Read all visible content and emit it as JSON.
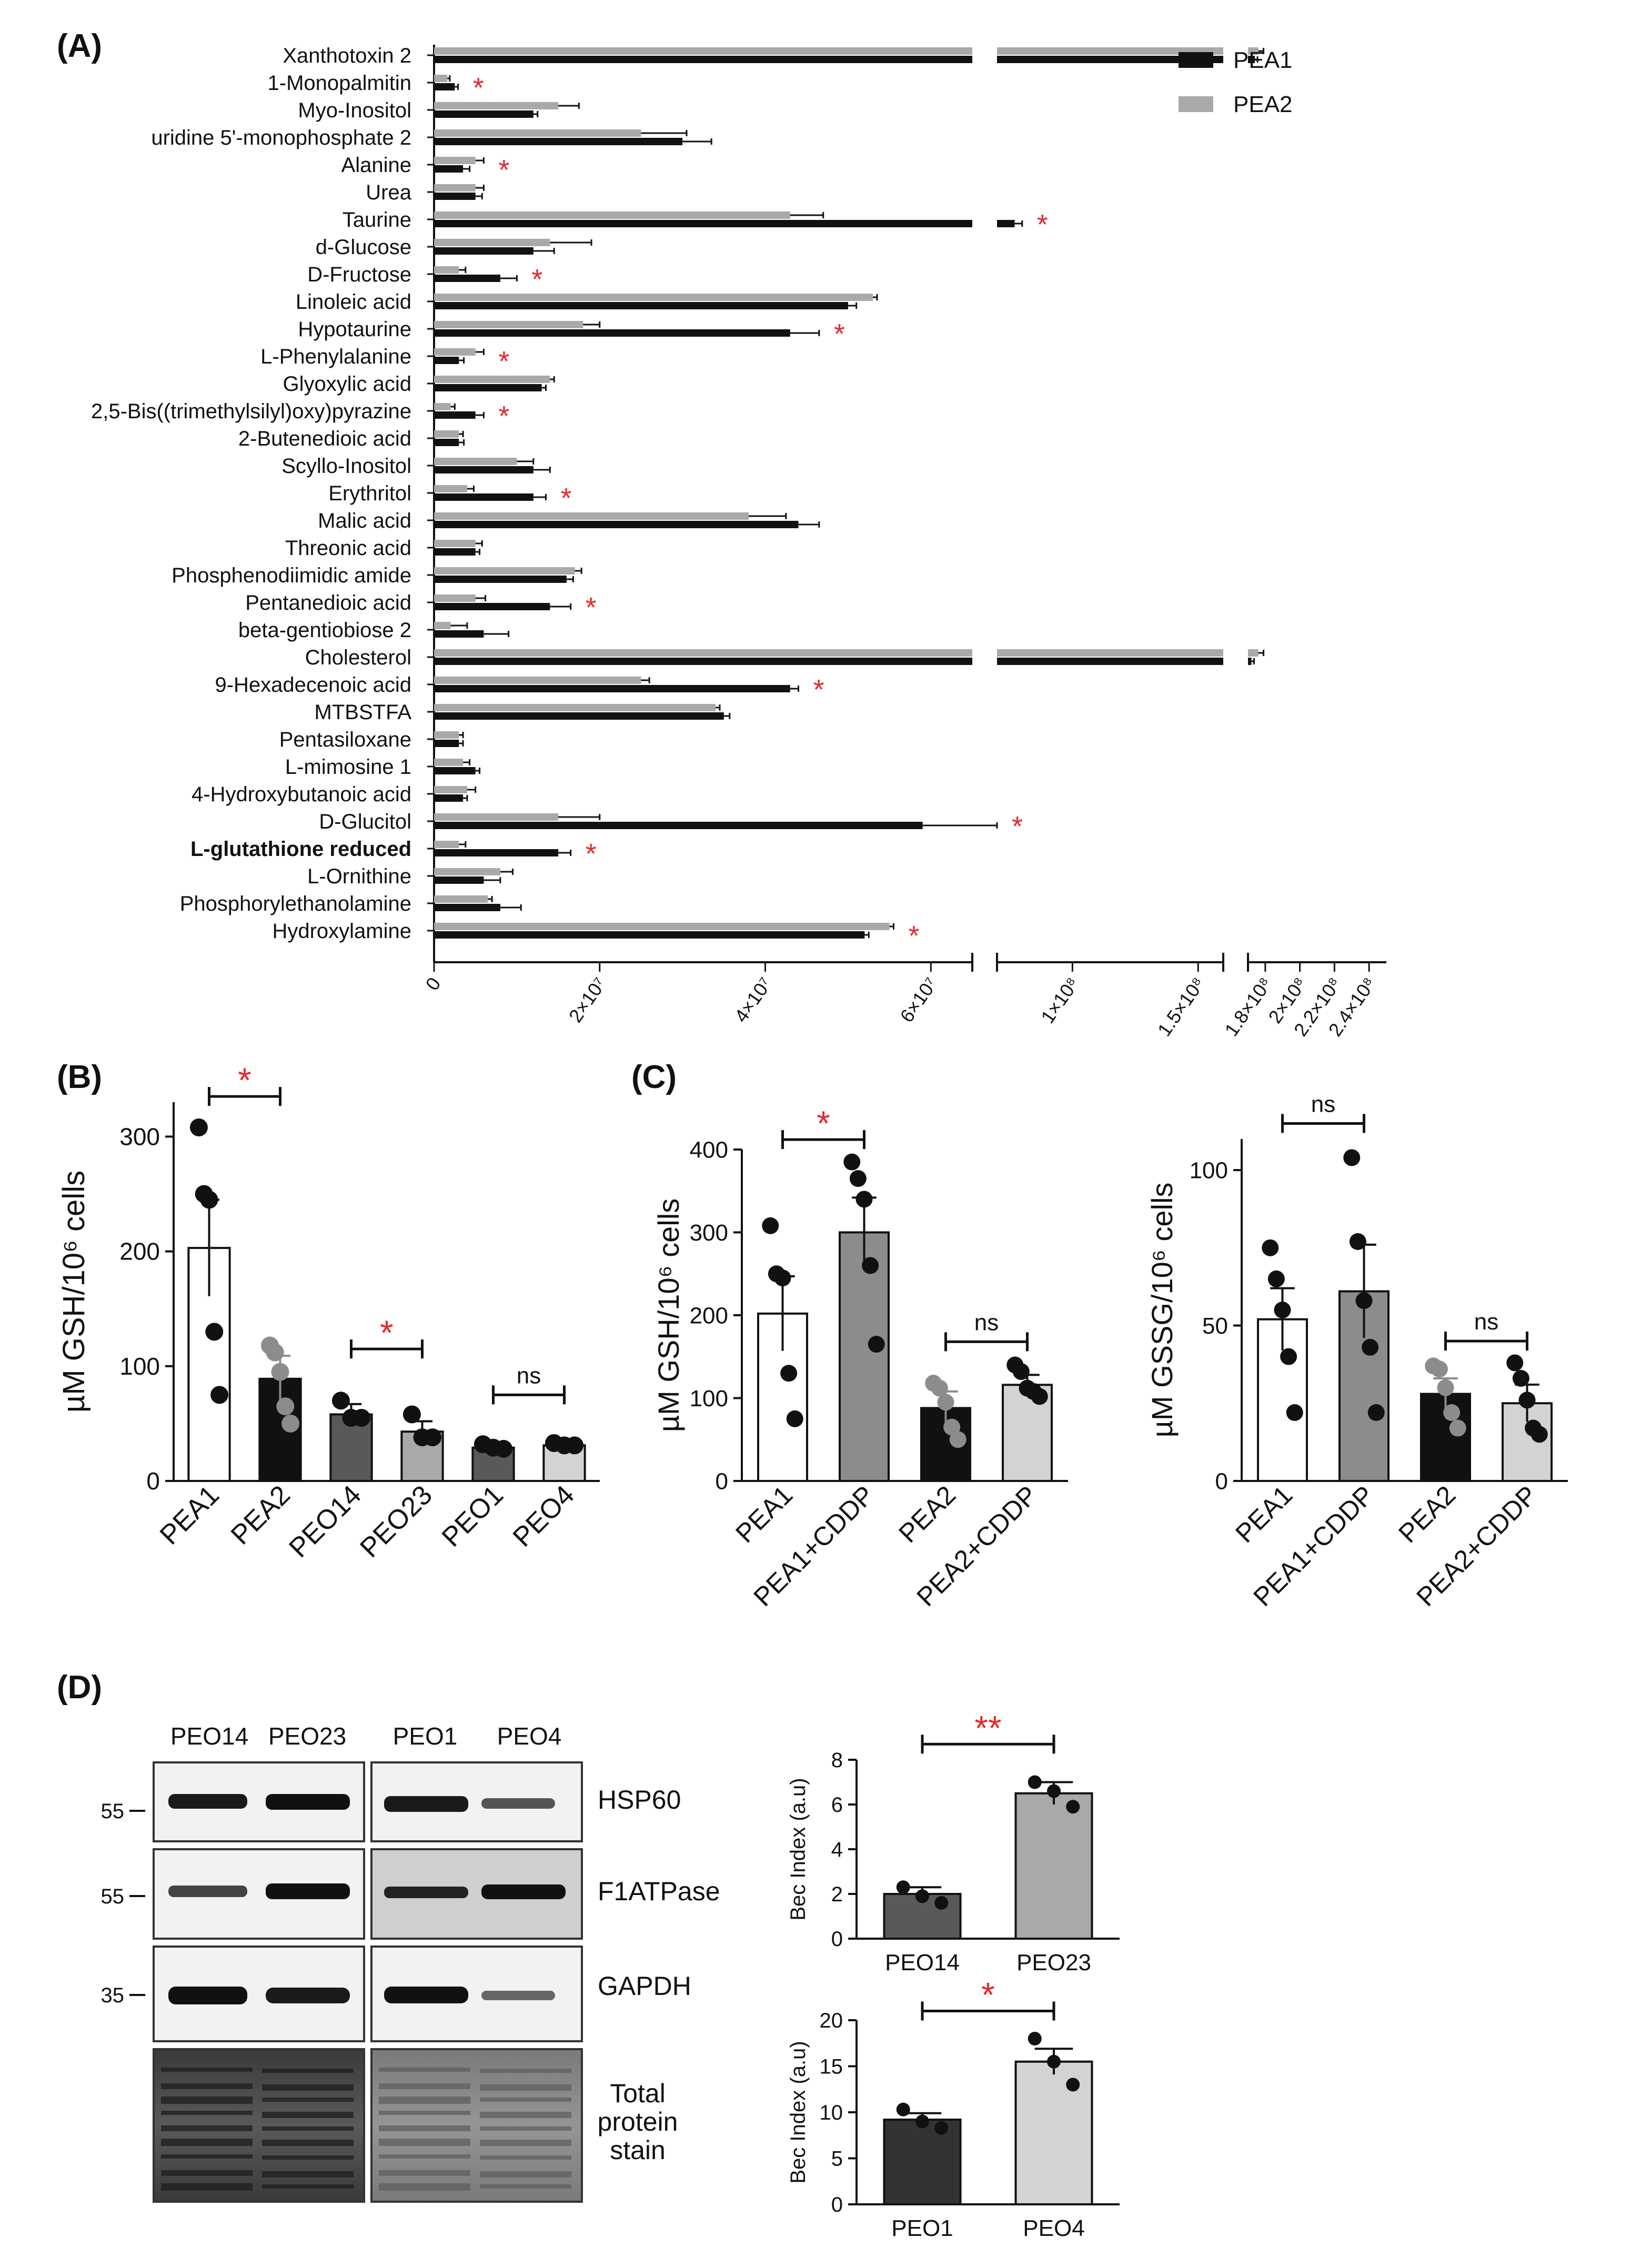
{
  "colors": {
    "black": "#111111",
    "gray": "#a9a9a9",
    "darkgray": "#595959",
    "midgray": "#8c8c8c",
    "lightgray": "#d3d3d3",
    "red": "#e8282b",
    "white": "#ffffff"
  },
  "panel_labels": {
    "a": "(A)",
    "b": "(B)",
    "c": "(C)",
    "d": "(D)"
  },
  "chart_data": [
    {
      "id": "A",
      "type": "bar",
      "orientation": "horizontal",
      "axis_breaks": [
        [
          65000000,
          70000000
        ],
        [
          160000000,
          170000000
        ]
      ],
      "xticks": [
        {
          "value": 0,
          "label": "0"
        },
        {
          "value": 20000000,
          "label": "2×10⁷"
        },
        {
          "value": 40000000,
          "label": "4×10⁷"
        },
        {
          "value": 60000000,
          "label": "6×10⁷"
        },
        {
          "value": 100000000,
          "label": "1×10⁸"
        },
        {
          "value": 150000000,
          "label": "1.5×10⁸"
        },
        {
          "value": 180000000,
          "label": "1.8×10⁸"
        },
        {
          "value": 200000000,
          "label": "2×10⁸"
        },
        {
          "value": 220000000,
          "label": "2.2×10⁸"
        },
        {
          "value": 240000000,
          "label": "2.4×10⁸"
        }
      ],
      "legend": {
        "position": "top-right",
        "entries": [
          {
            "name": "PEA1",
            "color": "#111111"
          },
          {
            "name": "PEA2",
            "color": "#a9a9a9"
          }
        ]
      },
      "categories": [
        {
          "name": "Xanthotoxin 2",
          "pea1": 174000000,
          "pea2": 176000000,
          "pea1_err": 1500000,
          "pea2_err": 3000000,
          "sig": false,
          "bold": false
        },
        {
          "name": "1-Monopalmitin",
          "pea1": 2500000,
          "pea2": 1600000,
          "pea1_err": 400000,
          "pea2_err": 300000,
          "sig": true,
          "bold": false
        },
        {
          "name": "Myo-Inositol",
          "pea1": 12000000,
          "pea2": 15000000,
          "pea1_err": 500000,
          "pea2_err": 2500000,
          "sig": false,
          "bold": false
        },
        {
          "name": "uridine 5'-monophosphate 2",
          "pea1": 30000000,
          "pea2": 25000000,
          "pea1_err": 3500000,
          "pea2_err": 5500000,
          "sig": false,
          "bold": false
        },
        {
          "name": "Alanine",
          "pea1": 3500000,
          "pea2": 5000000,
          "pea1_err": 800000,
          "pea2_err": 1000000,
          "sig": true,
          "bold": false
        },
        {
          "name": "Urea",
          "pea1": 5000000,
          "pea2": 5000000,
          "pea1_err": 800000,
          "pea2_err": 1000000,
          "sig": false,
          "bold": false
        },
        {
          "name": "Taurine",
          "pea1": 77000000,
          "pea2": 43000000,
          "pea1_err": 3000000,
          "pea2_err": 4000000,
          "sig": true,
          "bold": false
        },
        {
          "name": "d-Glucose",
          "pea1": 12000000,
          "pea2": 14000000,
          "pea1_err": 2500000,
          "pea2_err": 5000000,
          "sig": false,
          "bold": false
        },
        {
          "name": "D-Fructose",
          "pea1": 8000000,
          "pea2": 3000000,
          "pea1_err": 2000000,
          "pea2_err": 800000,
          "sig": true,
          "bold": false
        },
        {
          "name": "Linoleic acid",
          "pea1": 50000000,
          "pea2": 53000000,
          "pea1_err": 1000000,
          "pea2_err": 500000,
          "sig": false,
          "bold": false
        },
        {
          "name": "Hypotaurine",
          "pea1": 43000000,
          "pea2": 18000000,
          "pea1_err": 3500000,
          "pea2_err": 2000000,
          "sig": true,
          "bold": false
        },
        {
          "name": "L-Phenylalanine",
          "pea1": 3000000,
          "pea2": 5000000,
          "pea1_err": 600000,
          "pea2_err": 1000000,
          "sig": true,
          "bold": false
        },
        {
          "name": "Glyoxylic acid",
          "pea1": 13000000,
          "pea2": 14000000,
          "pea1_err": 500000,
          "pea2_err": 500000,
          "sig": false,
          "bold": false
        },
        {
          "name": "2,5-Bis((trimethylsilyl)oxy)pyrazine",
          "pea1": 5000000,
          "pea2": 2000000,
          "pea1_err": 1000000,
          "pea2_err": 500000,
          "sig": true,
          "bold": false
        },
        {
          "name": "2-Butenedioic acid",
          "pea1": 3000000,
          "pea2": 3000000,
          "pea1_err": 600000,
          "pea2_err": 500000,
          "sig": false,
          "bold": false
        },
        {
          "name": "Scyllo-Inositol",
          "pea1": 12000000,
          "pea2": 10000000,
          "pea1_err": 2000000,
          "pea2_err": 2000000,
          "sig": false,
          "bold": false
        },
        {
          "name": "Erythritol",
          "pea1": 12000000,
          "pea2": 4000000,
          "pea1_err": 1500000,
          "pea2_err": 800000,
          "sig": true,
          "bold": false
        },
        {
          "name": "Malic acid",
          "pea1": 44000000,
          "pea2": 38000000,
          "pea1_err": 2500000,
          "pea2_err": 4500000,
          "sig": false,
          "bold": false
        },
        {
          "name": "Threonic acid",
          "pea1": 5000000,
          "pea2": 5000000,
          "pea1_err": 500000,
          "pea2_err": 800000,
          "sig": false,
          "bold": false
        },
        {
          "name": "Phosphenodiimidic amide",
          "pea1": 16000000,
          "pea2": 17000000,
          "pea1_err": 800000,
          "pea2_err": 800000,
          "sig": false,
          "bold": false
        },
        {
          "name": "Pentanedioic acid",
          "pea1": 14000000,
          "pea2": 5000000,
          "pea1_err": 2500000,
          "pea2_err": 1200000,
          "sig": true,
          "bold": false
        },
        {
          "name": "beta-gentiobiose 2",
          "pea1": 6000000,
          "pea2": 2000000,
          "pea1_err": 3000000,
          "pea2_err": 2000000,
          "sig": false,
          "bold": false
        },
        {
          "name": "Cholesterol",
          "pea1": 172000000,
          "pea2": 176000000,
          "pea1_err": 1500000,
          "pea2_err": 3000000,
          "sig": false,
          "bold": false
        },
        {
          "name": "9-Hexadecenoic acid",
          "pea1": 43000000,
          "pea2": 25000000,
          "pea1_err": 1000000,
          "pea2_err": 1000000,
          "sig": true,
          "bold": false
        },
        {
          "name": "MTBSTFA",
          "pea1": 35000000,
          "pea2": 34000000,
          "pea1_err": 700000,
          "pea2_err": 500000,
          "sig": false,
          "bold": false
        },
        {
          "name": "Pentasiloxane",
          "pea1": 3000000,
          "pea2": 3000000,
          "pea1_err": 500000,
          "pea2_err": 500000,
          "sig": false,
          "bold": false
        },
        {
          "name": "L-mimosine 1",
          "pea1": 5000000,
          "pea2": 3500000,
          "pea1_err": 500000,
          "pea2_err": 800000,
          "sig": false,
          "bold": false
        },
        {
          "name": "4-Hydroxybutanoic acid",
          "pea1": 3500000,
          "pea2": 4000000,
          "pea1_err": 500000,
          "pea2_err": 1000000,
          "sig": false,
          "bold": false
        },
        {
          "name": "D-Glucitol",
          "pea1": 59000000,
          "pea2": 15000000,
          "pea1_err": 7000000,
          "pea2_err": 5000000,
          "sig": true,
          "bold": false
        },
        {
          "name": "L-glutathione reduced",
          "pea1": 15000000,
          "pea2": 3000000,
          "pea1_err": 1500000,
          "pea2_err": 800000,
          "sig": true,
          "bold": true
        },
        {
          "name": "L-Ornithine",
          "pea1": 6000000,
          "pea2": 8000000,
          "pea1_err": 2000000,
          "pea2_err": 1500000,
          "sig": false,
          "bold": false
        },
        {
          "name": "Phosphorylethanolamine",
          "pea1": 8000000,
          "pea2": 6500000,
          "pea1_err": 2500000,
          "pea2_err": 500000,
          "sig": false,
          "bold": false
        },
        {
          "name": "Hydroxylamine",
          "pea1": 52000000,
          "pea2": 55000000,
          "pea1_err": 500000,
          "pea2_err": 500000,
          "sig": true,
          "bold": false
        }
      ]
    },
    {
      "id": "B",
      "type": "bar",
      "ylabel": "µM GSH/10⁶ cells",
      "ylim": [
        0,
        330
      ],
      "yticks": [
        0,
        100,
        200,
        300
      ],
      "bars": [
        {
          "label": "PEA1",
          "mean": 203,
          "sem": 42,
          "fill": "#ffffff",
          "dot": "#111111",
          "points": [
            308,
            250,
            245,
            130,
            75
          ]
        },
        {
          "label": "PEA2",
          "mean": 89,
          "sem": 20,
          "fill": "#111111",
          "dot": "#8c8c8c",
          "points": [
            118,
            112,
            95,
            65,
            50
          ]
        },
        {
          "label": "PEO14",
          "mean": 58,
          "sem": 9,
          "fill": "#595959",
          "dot": "#111111",
          "points": [
            70,
            55,
            55
          ]
        },
        {
          "label": "PEO23",
          "mean": 43,
          "sem": 9,
          "fill": "#a9a9a9",
          "dot": "#111111",
          "points": [
            58,
            38,
            38
          ]
        },
        {
          "label": "PEO1",
          "mean": 29,
          "sem": 3,
          "fill": "#595959",
          "dot": "#111111",
          "points": [
            32,
            29,
            28
          ]
        },
        {
          "label": "PEO4",
          "mean": 31,
          "sem": 2,
          "fill": "#d3d3d3",
          "dot": "#111111",
          "points": [
            33,
            31,
            31
          ]
        }
      ],
      "brackets": [
        {
          "from": 0,
          "to": 1,
          "y": 335,
          "label": "*",
          "red": true
        },
        {
          "from": 2,
          "to": 3,
          "y": 115,
          "label": "*",
          "red": true
        },
        {
          "from": 4,
          "to": 5,
          "y": 75,
          "label": "ns",
          "red": false
        }
      ]
    },
    {
      "id": "C1",
      "type": "bar",
      "ylabel": "µM GSH/10⁶ cells",
      "ylim": [
        0,
        400
      ],
      "yticks": [
        0,
        100,
        200,
        300,
        400
      ],
      "bars": [
        {
          "label": "PEA1",
          "mean": 202,
          "sem": 45,
          "fill": "#ffffff",
          "dot": "#111111",
          "points": [
            308,
            250,
            245,
            130,
            75
          ]
        },
        {
          "label": "PEA1+CDDP",
          "mean": 300,
          "sem": 42,
          "fill": "#8c8c8c",
          "dot": "#111111",
          "points": [
            385,
            365,
            340,
            260,
            165
          ]
        },
        {
          "label": "PEA2",
          "mean": 88,
          "sem": 20,
          "fill": "#111111",
          "dot": "#8c8c8c",
          "points": [
            118,
            112,
            95,
            65,
            50
          ]
        },
        {
          "label": "PEA2+CDDP",
          "mean": 116,
          "sem": 12,
          "fill": "#d3d3d3",
          "dot": "#111111",
          "points": [
            140,
            132,
            112,
            108,
            102
          ]
        }
      ],
      "brackets": [
        {
          "from": 0,
          "to": 1,
          "y": 412,
          "label": "*",
          "red": true
        },
        {
          "from": 2,
          "to": 3,
          "y": 168,
          "label": "ns",
          "red": false
        }
      ]
    },
    {
      "id": "C2",
      "type": "bar",
      "ylabel": "µM GSSG/10⁶ cells",
      "ylim": [
        0,
        110
      ],
      "yticks": [
        0,
        50,
        100
      ],
      "bars": [
        {
          "label": "PEA1",
          "mean": 52,
          "sem": 10,
          "fill": "#ffffff",
          "dot": "#111111",
          "points": [
            75,
            65,
            55,
            40,
            22
          ]
        },
        {
          "label": "PEA1+CDDP",
          "mean": 61,
          "sem": 15,
          "fill": "#8c8c8c",
          "dot": "#111111",
          "points": [
            104,
            77,
            58,
            43,
            22
          ]
        },
        {
          "label": "PEA2",
          "mean": 28,
          "sem": 5,
          "fill": "#111111",
          "dot": "#8c8c8c",
          "points": [
            37,
            36,
            30,
            22,
            17
          ]
        },
        {
          "label": "PEA2+CDDP",
          "mean": 25,
          "sem": 6,
          "fill": "#d3d3d3",
          "dot": "#111111",
          "points": [
            38,
            33,
            26,
            17,
            15
          ]
        }
      ],
      "brackets": [
        {
          "from": 0,
          "to": 1,
          "y": 115,
          "label": "ns",
          "red": false
        },
        {
          "from": 2,
          "to": 3,
          "y": 45,
          "label": "ns",
          "red": false
        }
      ]
    },
    {
      "id": "D1",
      "type": "bar",
      "ylabel": "Bec Index (a.u)",
      "ylim": [
        0,
        8
      ],
      "yticks": [
        0,
        2,
        4,
        6,
        8
      ],
      "bars": [
        {
          "label": "PEO14",
          "mean": 2.0,
          "sem": 0.3,
          "fill": "#595959",
          "dot": "#111111",
          "points": [
            2.3,
            1.9,
            1.6
          ]
        },
        {
          "label": "PEO23",
          "mean": 6.5,
          "sem": 0.5,
          "fill": "#a9a9a9",
          "dot": "#111111",
          "points": [
            7.0,
            6.6,
            5.9
          ]
        }
      ],
      "brackets": [
        {
          "from": 0,
          "to": 1,
          "y": 8.7,
          "label": "**",
          "red": true
        }
      ]
    },
    {
      "id": "D2",
      "type": "bar",
      "ylabel": "Bec Index (a.u)",
      "ylim": [
        0,
        20
      ],
      "yticks": [
        0,
        5,
        10,
        15,
        20
      ],
      "bars": [
        {
          "label": "PEO1",
          "mean": 9.2,
          "sem": 0.7,
          "fill": "#333333",
          "dot": "#111111",
          "points": [
            10.3,
            9.0,
            8.3
          ]
        },
        {
          "label": "PEO4",
          "mean": 15.5,
          "sem": 1.4,
          "fill": "#d3d3d3",
          "dot": "#111111",
          "points": [
            18.0,
            15.5,
            13.0
          ]
        }
      ],
      "brackets": [
        {
          "from": 0,
          "to": 1,
          "y": 21,
          "label": "*",
          "red": true
        }
      ]
    }
  ],
  "blot": {
    "lanes_left": [
      "PEO14",
      "PEO23"
    ],
    "lanes_right": [
      "PEO1",
      "PEO4"
    ],
    "markers": [
      "55",
      "55",
      "35"
    ],
    "proteins": [
      "HSP60",
      "F1ATPase",
      "GAPDH"
    ],
    "stain_label": [
      "Total",
      "protein",
      "stain"
    ]
  }
}
